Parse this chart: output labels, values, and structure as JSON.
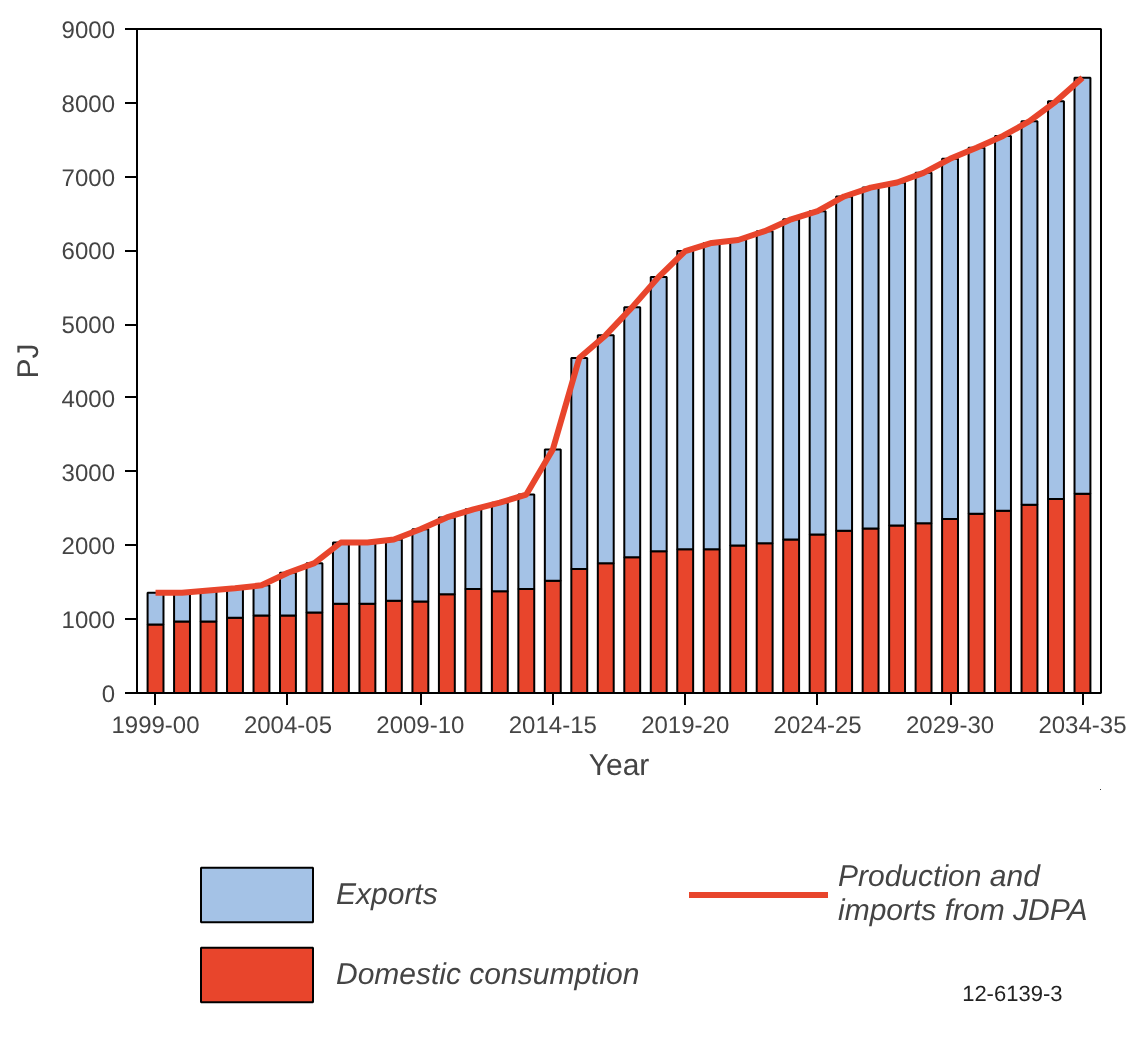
{
  "chart_data": {
    "type": "bar",
    "stacked": true,
    "xlabel": "Year",
    "ylabel": "PJ",
    "categories": [
      "1999-00",
      null,
      null,
      null,
      null,
      "2004-05",
      null,
      null,
      null,
      null,
      "2009-10",
      null,
      null,
      null,
      null,
      "2014-15",
      null,
      null,
      null,
      null,
      "2019-20",
      null,
      null,
      null,
      null,
      "2024-25",
      null,
      null,
      null,
      null,
      "2029-30",
      null,
      null,
      null,
      null,
      "2034-35"
    ],
    "series": [
      {
        "name": "Domestic consumption",
        "color": "#e8452c",
        "values": [
          930,
          970,
          970,
          1020,
          1050,
          1050,
          1090,
          1210,
          1210,
          1250,
          1240,
          1340,
          1410,
          1380,
          1410,
          1520,
          1680,
          1760,
          1840,
          1920,
          1950,
          1950,
          2000,
          2030,
          2080,
          2150,
          2200,
          2230,
          2270,
          2300,
          2360,
          2430,
          2470,
          2550,
          2630,
          2700
        ]
      },
      {
        "name": "Exports",
        "color": "#a4c2e6",
        "values": [
          430,
          390,
          420,
          400,
          410,
          580,
          670,
          830,
          830,
          830,
          980,
          1040,
          1080,
          1200,
          1280,
          1780,
          2860,
          3090,
          3390,
          3720,
          4040,
          4150,
          4140,
          4230,
          4340,
          4380,
          4530,
          4620,
          4650,
          4750,
          4880,
          4960,
          5080,
          5200,
          5390,
          5640
        ]
      },
      {
        "name": "Production and imports from JDPA",
        "type": "line",
        "color": "#e8452c",
        "values": [
          1360,
          1360,
          1390,
          1420,
          1460,
          1630,
          1760,
          2040,
          2040,
          2080,
          2220,
          2380,
          2490,
          2580,
          2690,
          3300,
          4540,
          4850,
          5230,
          5640,
          5990,
          6100,
          6140,
          6260,
          6420,
          6530,
          6730,
          6850,
          6920,
          7050,
          7240,
          7390,
          7550,
          7750,
          8020,
          8340
        ]
      }
    ],
    "ylim": [
      0,
      9000
    ],
    "yticks": [
      0,
      1000,
      2000,
      3000,
      4000,
      5000,
      6000,
      7000,
      8000,
      9000
    ],
    "grid": false,
    "legend": "bottom",
    "annotations": [
      "12-6139-3"
    ]
  }
}
